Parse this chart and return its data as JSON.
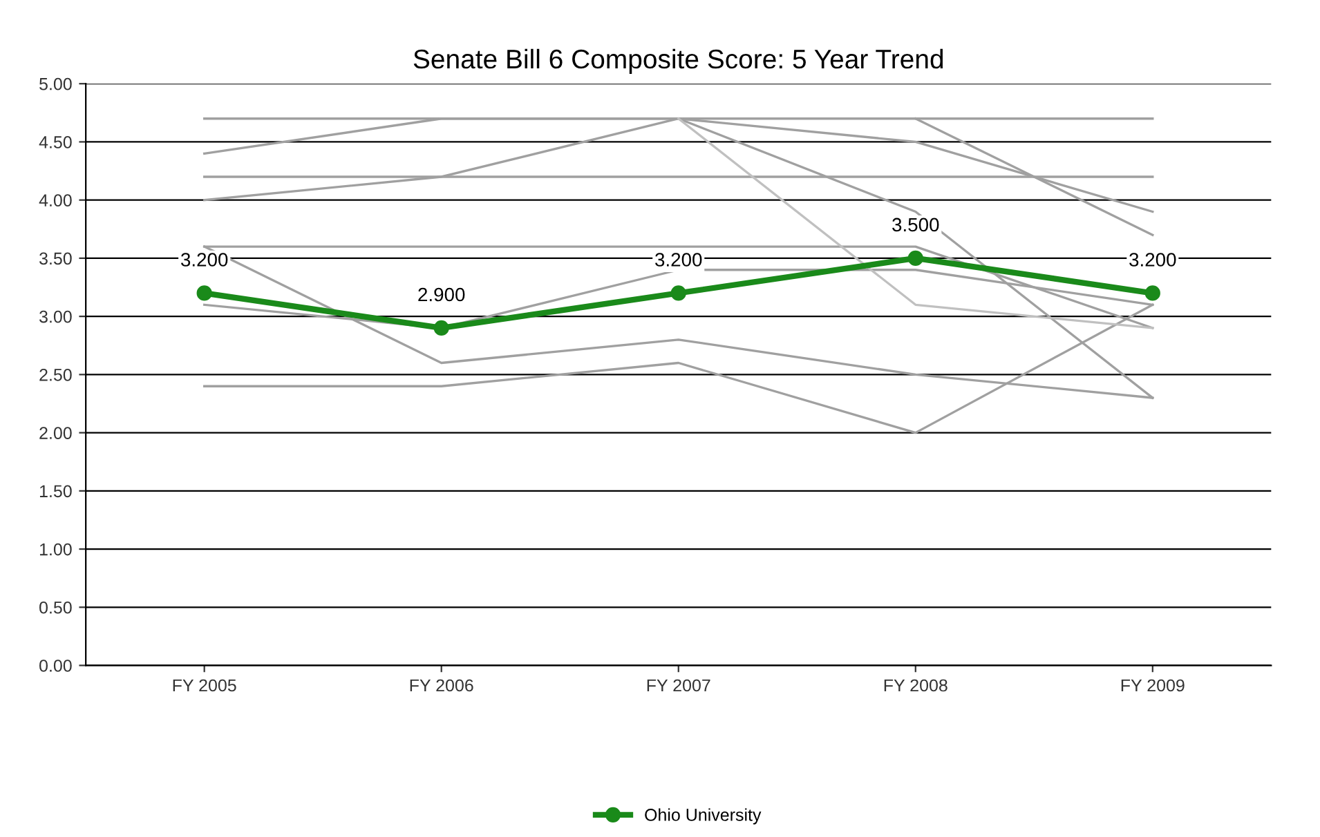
{
  "chart_data": {
    "type": "line",
    "title": "Senate Bill 6 Composite Score: 5 Year Trend",
    "categories": [
      "FY 2005",
      "FY 2006",
      "FY 2007",
      "FY 2008",
      "FY 2009"
    ],
    "ylim": [
      0,
      5
    ],
    "yticks": [
      {
        "value": 0,
        "label": "0.00"
      },
      {
        "value": 0.5,
        "label": "0.50"
      },
      {
        "value": 1,
        "label": "1.00"
      },
      {
        "value": 1.5,
        "label": "1.50"
      },
      {
        "value": 2,
        "label": "2.00"
      },
      {
        "value": 2.5,
        "label": "2.50"
      },
      {
        "value": 3,
        "label": "3.00"
      },
      {
        "value": 3.5,
        "label": "3.50"
      },
      {
        "value": 4,
        "label": "4.00"
      },
      {
        "value": 4.5,
        "label": "4.50"
      },
      {
        "value": 5,
        "label": "5.00"
      }
    ],
    "grid": "y",
    "legend": "bottom",
    "series": [
      {
        "color": "#a0a0a0",
        "marker": "none",
        "values": [
          4.7,
          4.7,
          4.7,
          4.7,
          4.7
        ]
      },
      {
        "color": "#a0a0a0",
        "marker": "none",
        "values": [
          4.4,
          4.7,
          4.7,
          3.9,
          2.3
        ]
      },
      {
        "color": "#a0a0a0",
        "marker": "none",
        "values": [
          4.0,
          4.2,
          4.7,
          4.5,
          3.9
        ]
      },
      {
        "color": "#a0a0a0",
        "marker": "none",
        "values": [
          4.2,
          4.2,
          4.2,
          4.2,
          4.2
        ]
      },
      {
        "color": "#a0a0a0",
        "marker": "none",
        "values": [
          3.6,
          3.6,
          3.6,
          3.6,
          2.9
        ]
      },
      {
        "color": "#a0a0a0",
        "marker": "none",
        "values": [
          3.6,
          2.6,
          2.8,
          2.5,
          2.3
        ]
      },
      {
        "color": "#a0a0a0",
        "marker": "none",
        "values": [
          3.1,
          2.9,
          3.4,
          3.4,
          3.1
        ]
      },
      {
        "color": "#a0a0a0",
        "marker": "none",
        "values": [
          2.4,
          2.4,
          2.6,
          2.0,
          3.1
        ]
      },
      {
        "color": "#c0c0c0",
        "marker": "none",
        "values": [
          null,
          null,
          4.7,
          3.1,
          2.9
        ]
      },
      {
        "color": "#a0a0a0",
        "marker": "none",
        "values": [
          null,
          null,
          null,
          4.7,
          3.7
        ]
      },
      {
        "name": "Ohio University",
        "color": "#1a8a1a",
        "marker": "circle",
        "values": [
          3.2,
          2.9,
          3.2,
          3.5,
          3.2
        ],
        "value_labels": [
          "3.200",
          "2.900",
          "3.200",
          "3.500",
          "3.200"
        ]
      }
    ]
  }
}
